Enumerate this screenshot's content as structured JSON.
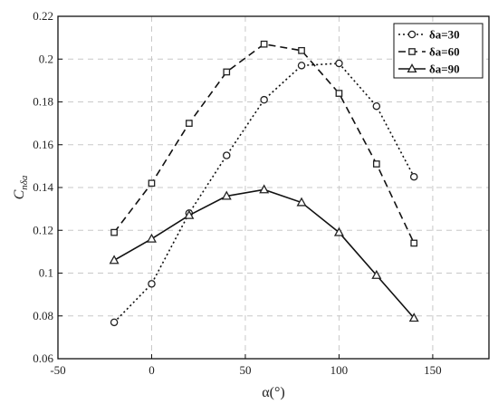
{
  "chart_data": {
    "type": "line",
    "xlabel": "α(°)",
    "ylabel": "C",
    "ylabel_sub": "nδa",
    "xlim": [
      -50,
      180
    ],
    "ylim": [
      0.06,
      0.22
    ],
    "xticks": [
      -50,
      0,
      50,
      100,
      150
    ],
    "yticks": [
      0.06,
      0.08,
      0.1,
      0.12,
      0.14,
      0.16,
      0.18,
      0.2,
      0.22
    ],
    "x_tick_labels": [
      "-50",
      "0",
      "50",
      "100",
      "150"
    ],
    "y_tick_labels": [
      "0.06",
      "0.08",
      "0.1",
      "0.12",
      "0.14",
      "0.16",
      "0.18",
      "0.2",
      "0.22"
    ],
    "grid": true,
    "legend_position": "top-right",
    "x": [
      -20,
      0,
      20,
      40,
      60,
      80,
      100,
      120,
      140
    ],
    "series": [
      {
        "name": "δa=30",
        "marker": "circle",
        "dash": "dotted",
        "values": [
          0.077,
          0.095,
          0.128,
          0.155,
          0.181,
          0.197,
          0.198,
          0.178,
          0.145
        ]
      },
      {
        "name": "δa=60",
        "marker": "square",
        "dash": "dashed",
        "values": [
          0.119,
          0.142,
          0.17,
          0.194,
          0.207,
          0.204,
          0.184,
          0.151,
          0.114
        ]
      },
      {
        "name": "δa=90",
        "marker": "triangle",
        "dash": "solid",
        "values": [
          0.106,
          0.116,
          0.127,
          0.136,
          0.139,
          0.133,
          0.119,
          0.099,
          0.079
        ]
      }
    ]
  }
}
